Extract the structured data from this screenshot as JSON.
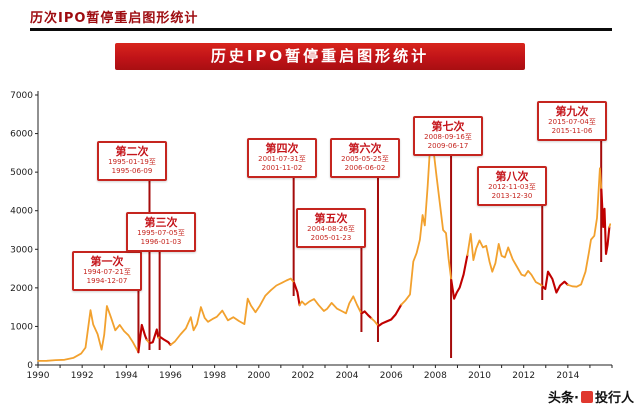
{
  "page": {
    "header_title": "历次IPO暂停重启图形统计",
    "banner_title": "历史IPO暂停重启图形统计",
    "watermark": {
      "prefix": "头条·",
      "name": "投行人"
    }
  },
  "chart_data": {
    "type": "line",
    "title": "历史IPO暂停重启图形统计",
    "xlabel": "",
    "ylabel": "",
    "xlim": [
      1990,
      2016
    ],
    "ylim": [
      0,
      7000
    ],
    "yticks": [
      0,
      1000,
      2000,
      3000,
      4000,
      5000,
      6000,
      7000
    ],
    "xticks": [
      1990,
      1992,
      1994,
      1996,
      1998,
      2000,
      2002,
      2004,
      2006,
      2008,
      2010,
      2012,
      2014
    ],
    "grid": false,
    "legend": "none",
    "axis_color": "#222222",
    "annotation_line_color": "#a50b0b",
    "series": [
      {
        "name": "main-series",
        "color": "#f2a12e",
        "suspended_color": "#c00000",
        "points": [
          [
            1990.0,
            105
          ],
          [
            1990.4,
            110
          ],
          [
            1990.8,
            128
          ],
          [
            1991.2,
            135
          ],
          [
            1991.6,
            185
          ],
          [
            1991.95,
            295
          ],
          [
            1992.15,
            450
          ],
          [
            1992.38,
            1420
          ],
          [
            1992.5,
            1050
          ],
          [
            1992.7,
            800
          ],
          [
            1992.88,
            400
          ],
          [
            1993.0,
            780
          ],
          [
            1993.12,
            1530
          ],
          [
            1993.3,
            1240
          ],
          [
            1993.5,
            900
          ],
          [
            1993.7,
            1040
          ],
          [
            1993.9,
            880
          ],
          [
            1994.1,
            770
          ],
          [
            1994.3,
            590
          ],
          [
            1994.55,
            330
          ],
          [
            1994.7,
            1040
          ],
          [
            1994.85,
            760
          ],
          [
            1994.93,
            650
          ],
          [
            1995.05,
            565
          ],
          [
            1995.2,
            590
          ],
          [
            1995.38,
            920
          ],
          [
            1995.45,
            710
          ],
          [
            1995.55,
            720
          ],
          [
            1995.7,
            660
          ],
          [
            1995.9,
            590
          ],
          [
            1996.0,
            520
          ],
          [
            1996.2,
            610
          ],
          [
            1996.45,
            790
          ],
          [
            1996.7,
            950
          ],
          [
            1996.92,
            1240
          ],
          [
            1997.05,
            900
          ],
          [
            1997.2,
            1060
          ],
          [
            1997.38,
            1500
          ],
          [
            1997.55,
            1220
          ],
          [
            1997.7,
            1120
          ],
          [
            1997.9,
            1190
          ],
          [
            1998.1,
            1250
          ],
          [
            1998.35,
            1410
          ],
          [
            1998.6,
            1160
          ],
          [
            1998.85,
            1240
          ],
          [
            1999.1,
            1140
          ],
          [
            1999.35,
            1060
          ],
          [
            1999.5,
            1720
          ],
          [
            1999.65,
            1540
          ],
          [
            1999.85,
            1370
          ],
          [
            2000.05,
            1540
          ],
          [
            2000.3,
            1800
          ],
          [
            2000.55,
            1940
          ],
          [
            2000.8,
            2060
          ],
          [
            2001.05,
            2130
          ],
          [
            2001.25,
            2190
          ],
          [
            2001.45,
            2240
          ],
          [
            2001.6,
            2130
          ],
          [
            2001.75,
            1890
          ],
          [
            2001.85,
            1550
          ],
          [
            2001.95,
            1650
          ],
          [
            2002.1,
            1560
          ],
          [
            2002.3,
            1650
          ],
          [
            2002.5,
            1710
          ],
          [
            2002.7,
            1560
          ],
          [
            2002.95,
            1400
          ],
          [
            2003.1,
            1460
          ],
          [
            2003.3,
            1610
          ],
          [
            2003.55,
            1460
          ],
          [
            2003.75,
            1400
          ],
          [
            2003.95,
            1340
          ],
          [
            2004.1,
            1600
          ],
          [
            2004.28,
            1780
          ],
          [
            2004.45,
            1560
          ],
          [
            2004.65,
            1330
          ],
          [
            2004.8,
            1390
          ],
          [
            2004.95,
            1290
          ],
          [
            2005.1,
            1210
          ],
          [
            2005.25,
            1130
          ],
          [
            2005.42,
            1010
          ],
          [
            2005.6,
            1080
          ],
          [
            2005.8,
            1130
          ],
          [
            2006.0,
            1180
          ],
          [
            2006.2,
            1310
          ],
          [
            2006.45,
            1560
          ],
          [
            2006.65,
            1680
          ],
          [
            2006.85,
            1830
          ],
          [
            2007.0,
            2680
          ],
          [
            2007.15,
            2900
          ],
          [
            2007.3,
            3250
          ],
          [
            2007.42,
            3890
          ],
          [
            2007.52,
            3620
          ],
          [
            2007.65,
            4650
          ],
          [
            2007.8,
            6050
          ],
          [
            2007.92,
            5550
          ],
          [
            2008.05,
            4900
          ],
          [
            2008.2,
            4200
          ],
          [
            2008.35,
            3500
          ],
          [
            2008.48,
            3420
          ],
          [
            2008.6,
            2750
          ],
          [
            2008.72,
            2200
          ],
          [
            2008.85,
            1720
          ],
          [
            2008.97,
            1880
          ],
          [
            2009.1,
            2010
          ],
          [
            2009.28,
            2350
          ],
          [
            2009.45,
            2850
          ],
          [
            2009.6,
            3400
          ],
          [
            2009.72,
            2720
          ],
          [
            2009.85,
            3020
          ],
          [
            2010.0,
            3230
          ],
          [
            2010.15,
            3050
          ],
          [
            2010.3,
            3090
          ],
          [
            2010.45,
            2680
          ],
          [
            2010.58,
            2420
          ],
          [
            2010.72,
            2640
          ],
          [
            2010.87,
            3140
          ],
          [
            2011.0,
            2830
          ],
          [
            2011.15,
            2790
          ],
          [
            2011.3,
            3050
          ],
          [
            2011.5,
            2740
          ],
          [
            2011.7,
            2540
          ],
          [
            2011.9,
            2340
          ],
          [
            2012.05,
            2310
          ],
          [
            2012.2,
            2440
          ],
          [
            2012.35,
            2340
          ],
          [
            2012.55,
            2150
          ],
          [
            2012.75,
            2090
          ],
          [
            2012.87,
            2030
          ],
          [
            2012.98,
            1970
          ],
          [
            2013.1,
            2420
          ],
          [
            2013.3,
            2230
          ],
          [
            2013.48,
            1880
          ],
          [
            2013.65,
            2060
          ],
          [
            2013.85,
            2160
          ],
          [
            2014.0,
            2080
          ],
          [
            2014.2,
            2040
          ],
          [
            2014.4,
            2030
          ],
          [
            2014.6,
            2090
          ],
          [
            2014.8,
            2420
          ],
          [
            2014.95,
            2900
          ],
          [
            2015.05,
            3250
          ],
          [
            2015.2,
            3350
          ],
          [
            2015.32,
            3810
          ],
          [
            2015.45,
            5100
          ],
          [
            2015.52,
            4550
          ],
          [
            2015.6,
            3580
          ],
          [
            2015.66,
            4050
          ],
          [
            2015.73,
            2880
          ],
          [
            2015.8,
            3120
          ],
          [
            2015.88,
            3580
          ],
          [
            2015.92,
            3650
          ]
        ]
      }
    ],
    "suspensions": [
      {
        "title": "第一次",
        "date_from": "1994-07-21至",
        "date_to": "1994-12-07",
        "x_start": 1994.55,
        "x_end": 1994.93,
        "box_left": 72,
        "box_top": 251,
        "line_end_y": 353
      },
      {
        "title": "第二次",
        "date_from": "1995-01-19至",
        "date_to": "1995-06-09",
        "x_start": 1995.05,
        "x_end": 1995.44,
        "box_left": 97,
        "box_top": 141,
        "line_end_y": 350
      },
      {
        "title": "第三次",
        "date_from": "1995-07-05至",
        "date_to": "1996-01-03",
        "x_start": 1995.51,
        "x_end": 1996.01,
        "box_left": 126,
        "box_top": 212,
        "line_end_y": 350
      },
      {
        "title": "第四次",
        "date_from": "2001-07-31至",
        "date_to": "2001-11-02",
        "x_start": 2001.58,
        "x_end": 2001.84,
        "box_left": 247,
        "box_top": 138,
        "line_end_y": 296
      },
      {
        "title": "第五次",
        "date_from": "2004-08-26至",
        "date_to": "2005-01-23",
        "x_start": 2004.65,
        "x_end": 2005.06,
        "box_left": 296,
        "box_top": 208,
        "line_end_y": 332
      },
      {
        "title": "第六次",
        "date_from": "2005-05-25至",
        "date_to": "2006-06-02",
        "x_start": 2005.4,
        "x_end": 2006.42,
        "box_left": 330,
        "box_top": 138,
        "line_end_y": 342
      },
      {
        "title": "第七次",
        "date_from": "2008-09-16至",
        "date_to": "2009-06-17",
        "x_start": 2008.71,
        "x_end": 2009.46,
        "box_left": 413,
        "box_top": 116,
        "line_end_y": 358
      },
      {
        "title": "第八次",
        "date_from": "2012-11-03至",
        "date_to": "2013-12-30",
        "x_start": 2012.84,
        "x_end": 2013.99,
        "box_left": 477,
        "box_top": 166,
        "line_end_y": 300
      },
      {
        "title": "第九次",
        "date_from": "2015-07-04至",
        "date_to": "2015-11-06",
        "x_start": 2015.51,
        "x_end": 2015.88,
        "box_left": 537,
        "box_top": 101,
        "line_end_y": 262
      }
    ]
  }
}
